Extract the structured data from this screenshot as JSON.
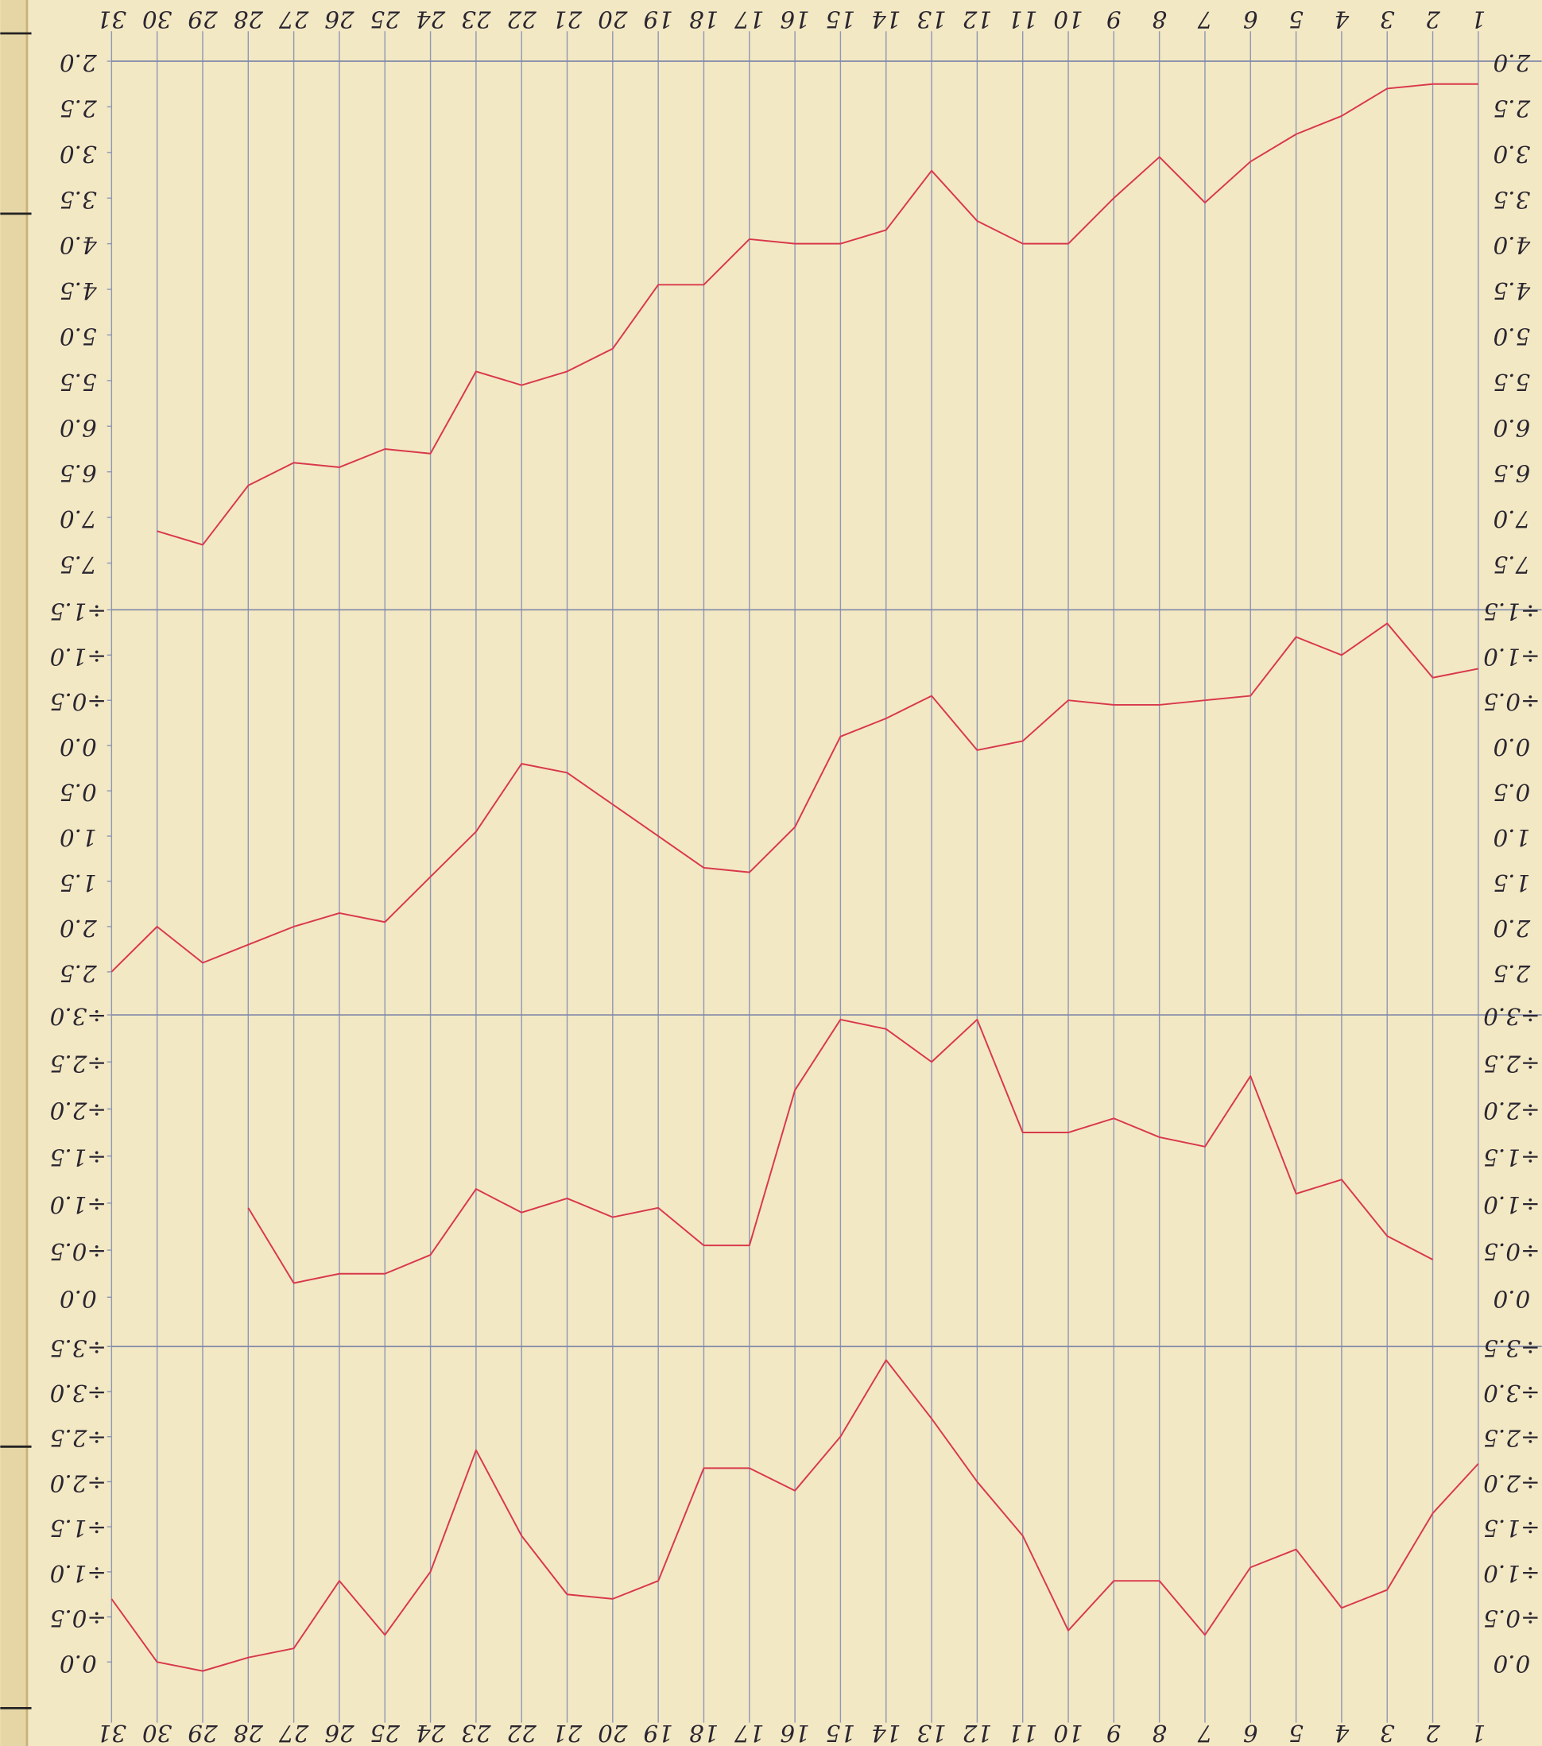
{
  "chart_data": {
    "type": "line",
    "categories": [
      "31",
      "30",
      "29",
      "28",
      "27",
      "26",
      "25",
      "24",
      "23",
      "22",
      "21",
      "20",
      "19",
      "18",
      "17",
      "16",
      "15",
      "14",
      "13",
      "12",
      "11",
      "10",
      "9",
      "8",
      "7",
      "6",
      "5",
      "4",
      "3",
      "2",
      "1"
    ],
    "color": "#d8384c",
    "inverted_y": true,
    "panels": [
      {
        "ylim": [
          2,
          8
        ],
        "yticks": [
          {
            "value": 2,
            "label": "2.0"
          },
          {
            "value": 2.5,
            "label": "2.5"
          },
          {
            "value": 3,
            "label": "3.0"
          },
          {
            "value": 3.5,
            "label": "3.5"
          },
          {
            "value": 4,
            "label": "4.0"
          },
          {
            "value": 4.5,
            "label": "4.5"
          },
          {
            "value": 5,
            "label": "5.0"
          },
          {
            "value": 5.5,
            "label": "5.5"
          },
          {
            "value": 6,
            "label": "6.0"
          },
          {
            "value": 6.5,
            "label": "6.5"
          },
          {
            "value": 7,
            "label": "7.0"
          },
          {
            "value": 7.5,
            "label": "7.5"
          }
        ],
        "values": [
          null,
          7.15,
          7.3,
          6.65,
          6.4,
          6.45,
          6.25,
          6.3,
          5.4,
          5.55,
          5.4,
          5.15,
          4.45,
          4.45,
          3.95,
          4.0,
          4.0,
          3.85,
          3.2,
          3.75,
          4.0,
          4.0,
          3.5,
          3.05,
          3.55,
          3.1,
          2.8,
          2.6,
          2.3,
          2.25,
          2.25
        ]
      },
      {
        "ylim": [
          -1.5,
          3
        ],
        "yticks": [
          {
            "value": -1.5,
            "label": "÷1.5"
          },
          {
            "value": -1,
            "label": "÷1.0"
          },
          {
            "value": -0.5,
            "label": "÷0.5"
          },
          {
            "value": 0,
            "label": "0.0"
          },
          {
            "value": 0.5,
            "label": "0.5"
          },
          {
            "value": 1,
            "label": "1.0"
          },
          {
            "value": 1.5,
            "label": "1.5"
          },
          {
            "value": 2,
            "label": "2.0"
          },
          {
            "value": 2.5,
            "label": "2.5"
          }
        ],
        "values": [
          2.5,
          2.0,
          2.4,
          2.2,
          2.0,
          1.85,
          1.95,
          1.45,
          0.95,
          0.2,
          0.3,
          0.65,
          1.0,
          1.35,
          1.4,
          0.9,
          -0.1,
          -0.3,
          -0.55,
          0.05,
          -0.05,
          -0.5,
          -0.45,
          -0.45,
          -0.5,
          -0.55,
          -1.2,
          -1.0,
          -1.35,
          -0.75,
          -0.85
        ]
      },
      {
        "ylim": [
          -3,
          0.5
        ],
        "yticks": [
          {
            "value": -3,
            "label": "÷3.0"
          },
          {
            "value": -2.5,
            "label": "÷2.5"
          },
          {
            "value": -2,
            "label": "÷2.0"
          },
          {
            "value": -1.5,
            "label": "÷1.5"
          },
          {
            "value": -1,
            "label": "÷1.0"
          },
          {
            "value": -0.5,
            "label": "÷0.5"
          },
          {
            "value": 0,
            "label": "0.0"
          }
        ],
        "values": [
          null,
          null,
          null,
          -0.95,
          -0.15,
          -0.25,
          -0.25,
          -0.45,
          -1.15,
          -0.9,
          -1.05,
          -0.85,
          -0.95,
          -0.55,
          -0.55,
          -2.2,
          -2.95,
          -2.85,
          -2.5,
          -2.95,
          -1.75,
          -1.75,
          -1.9,
          -1.7,
          -1.6,
          -2.35,
          -1.1,
          -1.25,
          -0.65,
          -0.4,
          null
        ]
      },
      {
        "ylim": [
          -3.5,
          0.5
        ],
        "yticks": [
          {
            "value": -3.5,
            "label": "÷3.5"
          },
          {
            "value": -3,
            "label": "÷3.0"
          },
          {
            "value": -2.5,
            "label": "÷2.5"
          },
          {
            "value": -2,
            "label": "÷2.0"
          },
          {
            "value": -1.5,
            "label": "÷1.5"
          },
          {
            "value": -1,
            "label": "÷1.0"
          },
          {
            "value": -0.5,
            "label": "÷0.5"
          },
          {
            "value": 0,
            "label": "0.0"
          }
        ],
        "values": [
          -0.7,
          0.0,
          0.1,
          -0.05,
          -0.15,
          -0.9,
          -0.3,
          -1.0,
          -2.35,
          -1.4,
          -0.75,
          -0.7,
          -0.9,
          -2.15,
          -2.15,
          -1.9,
          -2.5,
          -3.35,
          -2.7,
          -2.0,
          -1.4,
          -0.35,
          -0.9,
          -0.9,
          -0.3,
          -1.05,
          -1.25,
          -0.6,
          -0.8,
          -1.65,
          -2.2
        ]
      }
    ]
  }
}
